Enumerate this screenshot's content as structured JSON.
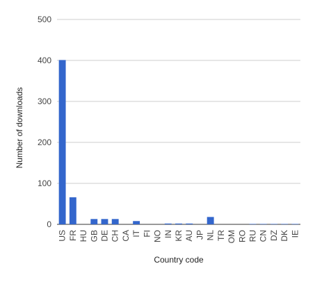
{
  "chart_data": {
    "type": "bar",
    "title": "",
    "xlabel": "Country code",
    "ylabel": "Number of downloads",
    "ylim": [
      0,
      500
    ],
    "yticks": [
      0,
      100,
      200,
      300,
      400,
      500
    ],
    "grid": true,
    "legend": "none",
    "bar_color": "#3366cc",
    "categories": [
      "US",
      "FR",
      "HU",
      "GB",
      "DE",
      "CH",
      "CA",
      "IT",
      "FI",
      "NO",
      "IN",
      "KR",
      "AU",
      "JP",
      "NL",
      "TR",
      "OM",
      "RO",
      "RU",
      "CN",
      "DZ",
      "DK",
      "IE"
    ],
    "values": [
      401,
      66,
      0,
      13,
      13,
      13,
      0,
      8,
      0,
      0,
      2,
      2,
      2,
      0,
      18,
      0,
      0,
      0,
      1,
      1,
      1,
      1,
      1
    ]
  }
}
